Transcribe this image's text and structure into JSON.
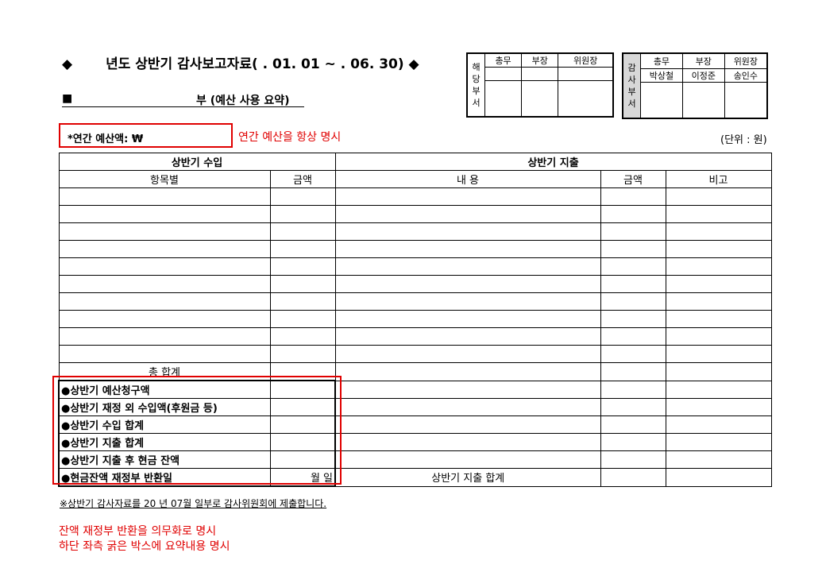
{
  "title": {
    "bullet": "◆",
    "text": "년도 상반기 감사보고자료(  . 01. 01 ~    . 06. 30) ◆"
  },
  "subtitle": {
    "bullet": "■",
    "text": "부 (예산 사용 요약)"
  },
  "approval_dept": {
    "label": [
      "해",
      "당",
      "부",
      "서"
    ],
    "headers": [
      "총무",
      "부장",
      "위원장"
    ],
    "names": [
      "",
      "",
      ""
    ]
  },
  "approval_audit": {
    "label": [
      "감",
      "사",
      "부",
      "서"
    ],
    "headers": [
      "총무",
      "부장",
      "위원장"
    ],
    "names": [
      "박상철",
      "이정준",
      "송인수"
    ]
  },
  "annual_budget": {
    "label": "*연간 예산액:  ₩",
    "note": "연간 예산을 항상 명시"
  },
  "unit": "(단위 : 원)",
  "table": {
    "income_header": "상반기    수입",
    "expense_header": "상반기     지출",
    "columns": [
      "항목별",
      "금액",
      "내        용",
      "금액",
      "비고"
    ],
    "total_label": "총 합계",
    "summary_rows": [
      {
        "label": "●상반기 예산청구액",
        "value": ""
      },
      {
        "label": "●상반기 재정 외 수입액(후원금 등)",
        "value": ""
      },
      {
        "label": "●상반기 수입 합계",
        "value": ""
      },
      {
        "label": "●상반기 지출 합계",
        "value": ""
      },
      {
        "label": "●상반기 지출 후 현금 잔액",
        "value": ""
      },
      {
        "label": "●현금잔액 재정부 반환일",
        "value": "월      일"
      }
    ],
    "expense_total_label": "상반기 지출 합계"
  },
  "footer": "※상반기 감사자료를  20      년  07월        일부로 감사위원회에 제출합니다.",
  "notes": [
    "잔액 재정부 반환을 의무화로 명시",
    "하단 좌측 굵은 박스에 요약내용 명시"
  ],
  "colors": {
    "annotation": "#e00000"
  }
}
